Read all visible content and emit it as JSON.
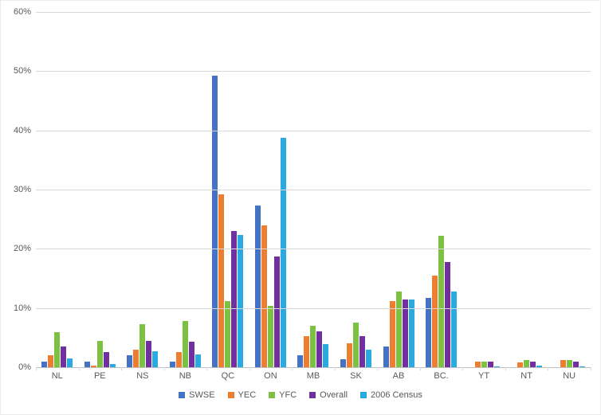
{
  "chart_data": {
    "type": "bar",
    "title": "",
    "xlabel": "",
    "ylabel": "",
    "ylim": [
      0,
      60
    ],
    "yticks": [
      0,
      10,
      20,
      30,
      40,
      50,
      60
    ],
    "ytick_suffix": "%",
    "grid": true,
    "legend_position": "bottom",
    "categories": [
      "NL",
      "PE",
      "NS",
      "NB",
      "QC",
      "ON",
      "MB",
      "SK",
      "AB",
      "BC.",
      "YT",
      "NT",
      "NU"
    ],
    "series": [
      {
        "name": "SWSE",
        "color": "#4472C4",
        "values": [
          1.0,
          0.9,
          2.0,
          1.0,
          49.3,
          27.3,
          2.0,
          1.3,
          3.5,
          11.7,
          0.0,
          0.0,
          0.0
        ]
      },
      {
        "name": "YEC",
        "color": "#ED7D31",
        "values": [
          2.0,
          0.3,
          3.0,
          2.5,
          29.2,
          24.0,
          5.2,
          4.0,
          11.2,
          15.5,
          1.0,
          0.8,
          1.2
        ]
      },
      {
        "name": "YFC",
        "color": "#7DC142",
        "values": [
          5.9,
          4.5,
          7.2,
          7.8,
          11.2,
          10.3,
          7.0,
          7.5,
          12.8,
          22.2,
          1.0,
          1.2,
          1.2
        ]
      },
      {
        "name": "Overall",
        "color": "#7030A0",
        "values": [
          3.5,
          2.5,
          4.5,
          4.3,
          23.0,
          18.7,
          6.0,
          5.2,
          11.5,
          17.8,
          1.0,
          1.0,
          1.0
        ]
      },
      {
        "name": "2006 Census",
        "color": "#29ABE2",
        "values": [
          1.5,
          0.5,
          2.7,
          2.2,
          22.3,
          38.7,
          3.9,
          3.0,
          11.4,
          12.8,
          0.1,
          0.3,
          0.2
        ]
      }
    ]
  },
  "colors": {
    "gridline": "#d9d9d9",
    "baseline": "#bfbfbf",
    "axis_text": "#595959",
    "background": "#ffffff"
  }
}
